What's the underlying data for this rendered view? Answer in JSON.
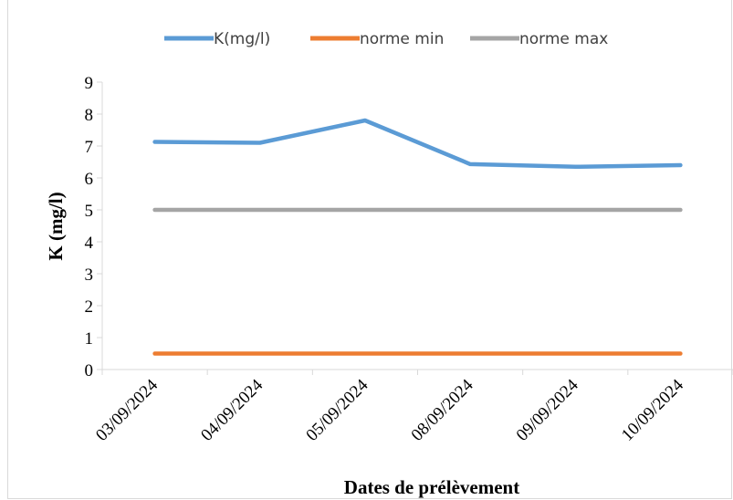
{
  "chart_data": {
    "type": "line",
    "categories": [
      "03/09/2024",
      "04/09/2024",
      "05/09/2024",
      "08/09/2024",
      "09/09/2024",
      "10/09/2024"
    ],
    "series": [
      {
        "name": "K(mg/l)",
        "color": "#5b9bd5",
        "values": [
          7.13,
          7.1,
          7.8,
          6.43,
          6.35,
          6.4
        ]
      },
      {
        "name": "norme min",
        "color": "#ed7d31",
        "values": [
          0.5,
          0.5,
          0.5,
          0.5,
          0.5,
          0.5
        ]
      },
      {
        "name": "norme max",
        "color": "#a5a5a5",
        "values": [
          5,
          5,
          5,
          5,
          5,
          5
        ]
      }
    ],
    "xlabel": "Dates de prélèvement",
    "ylabel": "K (mg/l)",
    "ylim": [
      0,
      9
    ],
    "yticks": [
      "0",
      "1",
      "2",
      "3",
      "4",
      "5",
      "6",
      "7",
      "8",
      "9"
    ],
    "grid": false,
    "legend_position": "top"
  }
}
